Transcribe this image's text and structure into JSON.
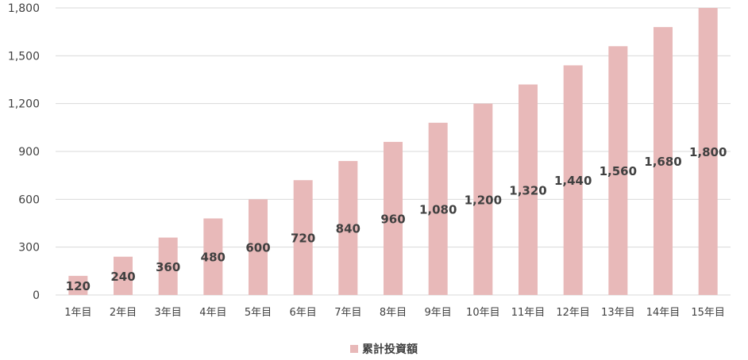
{
  "chart_data": {
    "type": "bar",
    "categories": [
      "1年目",
      "2年目",
      "3年目",
      "4年目",
      "5年目",
      "6年目",
      "7年目",
      "8年目",
      "9年目",
      "10年目",
      "11年目",
      "12年目",
      "13年目",
      "14年目",
      "15年目"
    ],
    "series": [
      {
        "name": "累計投資額",
        "values": [
          120,
          240,
          360,
          480,
          600,
          720,
          840,
          960,
          1080,
          1200,
          1320,
          1440,
          1560,
          1680,
          1800
        ],
        "value_labels": [
          "120",
          "240",
          "360",
          "480",
          "600",
          "720",
          "840",
          "960",
          "1,080",
          "1,200",
          "1,320",
          "1,440",
          "1,560",
          "1,680",
          "1,800"
        ],
        "color": "#e8b9b9"
      }
    ],
    "ylim": [
      0,
      1800
    ],
    "yticks": [
      0,
      300,
      600,
      900,
      1200,
      1500,
      1800
    ],
    "ytick_labels": [
      "0",
      "300",
      "600",
      "900",
      "1,200",
      "1,500",
      "1,800"
    ],
    "grid": true,
    "gridline_color": "#d9d9d9",
    "legend_position": "bottom",
    "title": "",
    "xlabel": "",
    "ylabel": ""
  }
}
